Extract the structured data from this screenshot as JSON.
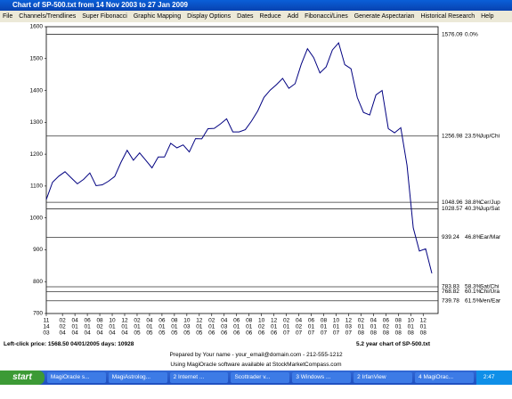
{
  "window": {
    "title": "Chart of SP-500.txt from 14 Nov 2003 to 27 Jan 2009",
    "menu": [
      "File",
      "Channels/Trendlines",
      "Super Fibonacci",
      "Graphic Mapping",
      "Display Options",
      "Dates",
      "Reduce",
      "Add",
      "Fibonacci/Lines",
      "Generate Aspectarian",
      "Historical Research",
      "Help"
    ]
  },
  "chart_data": {
    "type": "line",
    "xlim": [
      0,
      63
    ],
    "ylim": [
      700,
      1600
    ],
    "yticks": [
      700,
      800,
      900,
      1000,
      1100,
      1200,
      1300,
      1400,
      1500,
      1600
    ],
    "xticks": [
      {
        "value": 0,
        "label": [
          "11",
          "14",
          "03"
        ]
      },
      {
        "value": 2.6,
        "label": [
          "02",
          "02",
          "04"
        ]
      },
      {
        "value": 4.6,
        "label": [
          "04",
          "01",
          "04"
        ]
      },
      {
        "value": 6.6,
        "label": [
          "06",
          "01",
          "04"
        ]
      },
      {
        "value": 8.6,
        "label": [
          "08",
          "02",
          "04"
        ]
      },
      {
        "value": 10.6,
        "label": [
          "10",
          "01",
          "04"
        ]
      },
      {
        "value": 12.6,
        "label": [
          "12",
          "01",
          "04"
        ]
      },
      {
        "value": 14.6,
        "label": [
          "02",
          "01",
          "05"
        ]
      },
      {
        "value": 16.6,
        "label": [
          "04",
          "01",
          "05"
        ]
      },
      {
        "value": 18.6,
        "label": [
          "06",
          "01",
          "05"
        ]
      },
      {
        "value": 20.6,
        "label": [
          "08",
          "01",
          "05"
        ]
      },
      {
        "value": 22.6,
        "label": [
          "10",
          "03",
          "05"
        ]
      },
      {
        "value": 24.6,
        "label": [
          "12",
          "01",
          "05"
        ]
      },
      {
        "value": 26.6,
        "label": [
          "02",
          "01",
          "06"
        ]
      },
      {
        "value": 28.6,
        "label": [
          "04",
          "03",
          "06"
        ]
      },
      {
        "value": 30.6,
        "label": [
          "06",
          "01",
          "06"
        ]
      },
      {
        "value": 32.6,
        "label": [
          "08",
          "01",
          "06"
        ]
      },
      {
        "value": 34.6,
        "label": [
          "10",
          "02",
          "06"
        ]
      },
      {
        "value": 36.6,
        "label": [
          "12",
          "01",
          "06"
        ]
      },
      {
        "value": 38.6,
        "label": [
          "02",
          "01",
          "07"
        ]
      },
      {
        "value": 40.6,
        "label": [
          "04",
          "02",
          "07"
        ]
      },
      {
        "value": 42.6,
        "label": [
          "06",
          "01",
          "07"
        ]
      },
      {
        "value": 44.6,
        "label": [
          "08",
          "01",
          "07"
        ]
      },
      {
        "value": 46.6,
        "label": [
          "10",
          "01",
          "07"
        ]
      },
      {
        "value": 48.6,
        "label": [
          "12",
          "03",
          "07"
        ]
      },
      {
        "value": 50.6,
        "label": [
          "02",
          "01",
          "08"
        ]
      },
      {
        "value": 52.6,
        "label": [
          "04",
          "01",
          "08"
        ]
      },
      {
        "value": 54.6,
        "label": [
          "06",
          "02",
          "08"
        ]
      },
      {
        "value": 56.6,
        "label": [
          "08",
          "01",
          "08"
        ]
      },
      {
        "value": 58.6,
        "label": [
          "10",
          "01",
          "08"
        ]
      },
      {
        "value": 60.6,
        "label": [
          "12",
          "01",
          "08"
        ]
      }
    ],
    "series": [
      {
        "color": "#000080",
        "x": [
          0,
          1,
          2,
          3,
          4,
          5,
          6,
          7,
          8,
          9,
          10,
          11,
          12,
          13,
          14,
          15,
          16,
          17,
          18,
          19,
          20,
          21,
          22,
          23,
          24,
          25,
          26,
          27,
          28,
          29,
          30,
          31,
          32,
          33,
          34,
          35,
          36,
          37,
          38,
          39,
          40,
          41,
          42,
          43,
          44,
          45,
          46,
          47,
          48,
          49,
          50,
          51,
          52,
          53,
          54,
          55,
          56,
          57,
          58,
          59,
          60,
          61,
          62
        ],
        "values": [
          1058,
          1112,
          1131,
          1145,
          1126,
          1107,
          1121,
          1141,
          1101,
          1104,
          1115,
          1130,
          1174,
          1212,
          1181,
          1204,
          1181,
          1157,
          1191,
          1191,
          1234,
          1220,
          1229,
          1207,
          1249,
          1248,
          1280,
          1281,
          1295,
          1311,
          1270,
          1270,
          1277,
          1304,
          1336,
          1378,
          1401,
          1418,
          1438,
          1407,
          1421,
          1482,
          1531,
          1503,
          1455,
          1474,
          1527,
          1549,
          1481,
          1468,
          1378,
          1331,
          1323,
          1386,
          1400,
          1280,
          1267,
          1283,
          1165,
          969,
          896,
          903,
          826
        ]
      }
    ],
    "fib_levels": [
      {
        "value": 1576.09,
        "percent": "0.0%"
      },
      {
        "value": 1256.98,
        "percent": "23.5%",
        "name": "Jup/Chi"
      },
      {
        "value": 1048.96,
        "percent": "38.8%",
        "name": "Cer/Jup"
      },
      {
        "value": 1028.57,
        "percent": "40.3%",
        "name": "Jup/Sat"
      },
      {
        "value": 939.24,
        "percent": "46.8%",
        "name": "Ear/Mar"
      },
      {
        "value": 783.83,
        "percent": "58.3%",
        "name": "Sat/Chi"
      },
      {
        "value": 768.82,
        "percent": "60.1%",
        "name": "Chi/Ura"
      },
      {
        "value": 739.78,
        "percent": "61.5%",
        "name": "Ven/Ear"
      }
    ]
  },
  "footer": {
    "click_info": "Left-click price: 1568.50  04/01/2005  days: 10928",
    "chart_desc": "5.2 year chart of SP-500.txt",
    "prepared": "Prepared by Your name - your_email@domain.com - 212-555-1212",
    "software": "Using MagiOracle software available at StockMarketCompass.com"
  },
  "taskbar": {
    "start": "start",
    "items": [
      "MagiOracle s...",
      "MagiAstrolog...",
      "2 Internet ...",
      "Scottrader v...",
      "3 Windows ...",
      "2 IrfanView",
      "4 MagiOrac..."
    ],
    "clock": "2:47 PM"
  }
}
